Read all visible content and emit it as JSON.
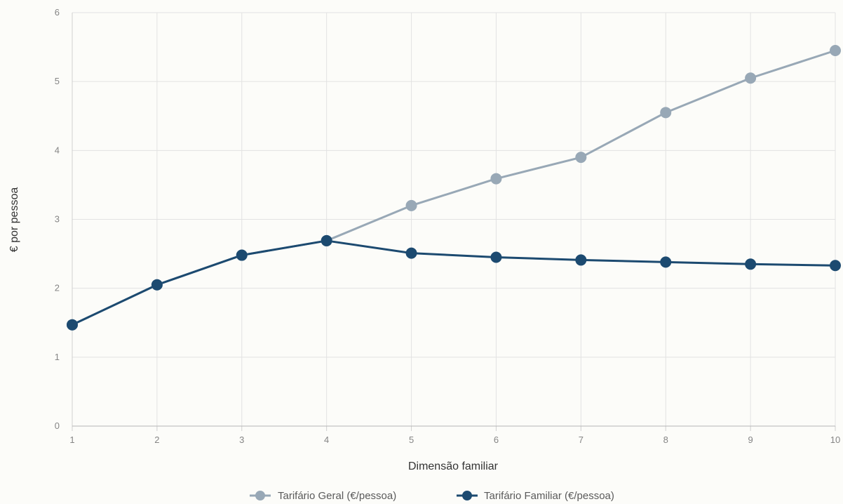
{
  "chart_data": {
    "type": "line",
    "title": "",
    "xlabel": "Dimensão familiar",
    "ylabel": "€ por pessoa",
    "x": [
      1,
      2,
      3,
      4,
      5,
      6,
      7,
      8,
      9,
      10
    ],
    "xlim": [
      1,
      10
    ],
    "ylim": [
      0,
      6
    ],
    "yticks": [
      0,
      1,
      2,
      3,
      4,
      5,
      6
    ],
    "grid": true,
    "legend_position": "bottom-center",
    "series": [
      {
        "name": "Tarifário Geral (€/pessoa)",
        "color": "#98a8b6",
        "values": [
          1.47,
          2.05,
          2.48,
          2.69,
          3.2,
          3.59,
          3.9,
          4.55,
          5.05,
          5.45
        ]
      },
      {
        "name": "Tarifário Familiar (€/pessoa)",
        "color": "#1c4a70",
        "values": [
          1.47,
          2.05,
          2.48,
          2.69,
          2.51,
          2.45,
          2.41,
          2.38,
          2.35,
          2.33
        ]
      }
    ]
  }
}
